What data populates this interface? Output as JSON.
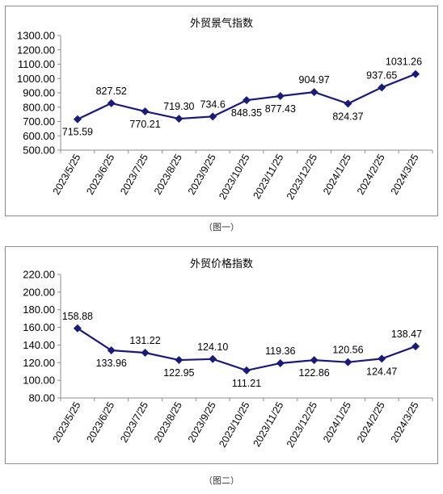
{
  "colors": {
    "series": "#1a1a7a",
    "axis": "#8c8c8c",
    "grid": "none"
  },
  "captions": {
    "fig1": "（图一）",
    "fig2": "（图二）"
  },
  "chart_data": [
    {
      "type": "line",
      "title": "外贸景气指数",
      "xlabel": "",
      "ylabel": "",
      "categories": [
        "2023/5/25",
        "2023/6/25",
        "2023/7/25",
        "2023/8/25",
        "2023/9/25",
        "2023/10/25",
        "2023/11/25",
        "2023/12/25",
        "2024/1/25",
        "2024/2/25",
        "2024/3/25"
      ],
      "series": [
        {
          "values": [
            715.59,
            827.52,
            770.21,
            719.3,
            734.6,
            848.35,
            877.43,
            904.97,
            824.37,
            937.65,
            1031.26
          ]
        }
      ],
      "data_labels": [
        "715.59",
        "827.52",
        "770.21",
        "719.30",
        "734.6",
        "848.35",
        "877.43",
        "904.97",
        "824.37",
        "937.65",
        "1031.26"
      ],
      "label_position": [
        "below",
        "above",
        "below",
        "above",
        "above",
        "below",
        "below",
        "above",
        "below",
        "above",
        "above"
      ],
      "yticks": [
        "500.00",
        "600.00",
        "700.00",
        "800.00",
        "900.00",
        "1000.00",
        "1100.00",
        "1200.00",
        "1300.00"
      ],
      "ylim": [
        500,
        1300
      ],
      "grid": false,
      "marker": "diamond"
    },
    {
      "type": "line",
      "title": "外贸价格指数",
      "xlabel": "",
      "ylabel": "",
      "categories": [
        "2023/5/25",
        "2023/6/25",
        "2023/7/25",
        "2023/8/25",
        "2023/9/25",
        "2023/10/25",
        "2023/11/25",
        "2023/12/25",
        "2024/1/25",
        "2024/2/25",
        "2024/3/25"
      ],
      "series": [
        {
          "values": [
            158.88,
            133.96,
            131.22,
            122.95,
            124.1,
            111.21,
            119.36,
            122.86,
            120.56,
            124.47,
            138.47
          ]
        }
      ],
      "data_labels": [
        "158.88",
        "133.96",
        "131.22",
        "122.95",
        "124.10",
        "111.21",
        "119.36",
        "122.86",
        "120.56",
        "124.47",
        "138.47"
      ],
      "label_position": [
        "above",
        "below",
        "above",
        "below",
        "above",
        "below",
        "above",
        "below",
        "above",
        "below",
        "above"
      ],
      "yticks": [
        "80.00",
        "100.00",
        "120.00",
        "140.00",
        "160.00",
        "180.00",
        "200.00",
        "220.00"
      ],
      "ylim": [
        80,
        220
      ],
      "grid": false,
      "marker": "diamond"
    }
  ]
}
